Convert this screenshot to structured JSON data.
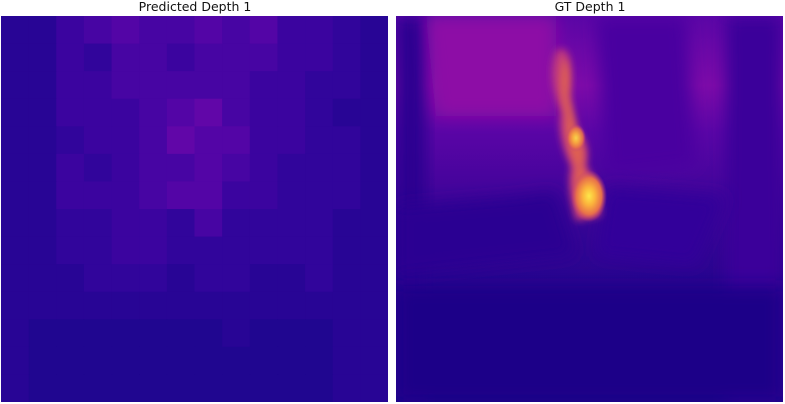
{
  "panels": [
    {
      "title": "Predicted Depth 1"
    },
    {
      "title": "GT Depth 1"
    }
  ],
  "colormap": "plasma"
}
